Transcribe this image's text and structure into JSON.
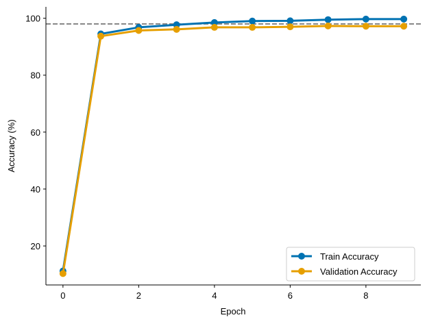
{
  "chart_data": {
    "type": "line",
    "title": "",
    "xlabel": "Epoch",
    "ylabel": "Accuracy (%)",
    "xlim": [
      -0.45,
      9.45
    ],
    "ylim": [
      6.3,
      104
    ],
    "xticks": [
      0,
      2,
      4,
      6,
      8
    ],
    "yticks": [
      20,
      40,
      60,
      80,
      100
    ],
    "x": [
      0,
      1,
      2,
      3,
      4,
      5,
      6,
      7,
      8,
      9
    ],
    "series": [
      {
        "name": "Train Accuracy",
        "color": "#0072B2",
        "values": [
          11.2,
          94.5,
          96.8,
          97.7,
          98.5,
          99.0,
          99.1,
          99.5,
          99.7,
          99.7
        ]
      },
      {
        "name": "Validation Accuracy",
        "color": "#E69F00",
        "values": [
          10.3,
          93.7,
          95.7,
          96.1,
          96.8,
          96.8,
          97.0,
          97.3,
          97.2,
          97.2
        ]
      }
    ],
    "reference_line": {
      "y": 98,
      "color": "#808080",
      "style": "dashed"
    },
    "legend_position": "lower-right",
    "grid": false
  }
}
